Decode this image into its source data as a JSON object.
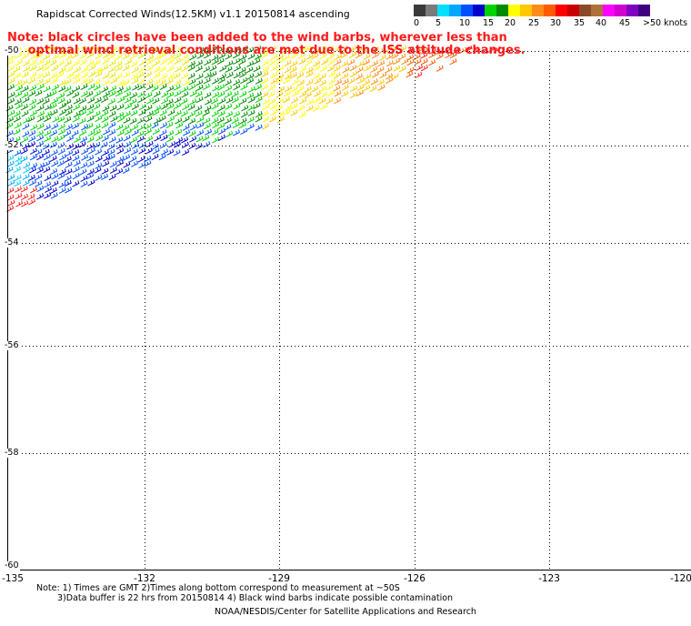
{
  "header": {
    "title": "Rapidscat Corrected Winds(12.5KM) v1.1 20150814 ascending"
  },
  "warning": {
    "line1": "Note: black circles have been added to the wind barbs, wherever less than",
    "line2": "     optimal wind retrieval conditions are met due to the ISS attitude changes."
  },
  "speed_scale": {
    "colors": [
      "#3a3a3a",
      "#7a7a7a",
      "#00e0ff",
      "#00a8ff",
      "#0050ff",
      "#0000cc",
      "#00d400",
      "#008a00",
      "#ffff00",
      "#ffc800",
      "#ff8c1a",
      "#ff5a00",
      "#ff0000",
      "#c80000",
      "#8b4a2a",
      "#b0703a",
      "#ff00ff",
      "#d000d0",
      "#8000c0",
      "#400080"
    ],
    "labels": [
      "0",
      "5",
      "10",
      "15",
      "20",
      "25",
      "30",
      "35",
      "40",
      "45",
      ">50 knots"
    ]
  },
  "map": {
    "lat_labels": [
      "-50",
      "-52",
      "-54",
      "-56",
      "-58",
      "-60"
    ],
    "lon_labels": [
      "-135",
      "-132",
      "-129",
      "-126",
      "-123",
      "-120"
    ]
  },
  "footer": {
    "note1": "Note: 1) Times are GMT 2)Times along bottom correspond to measurement at ~50S",
    "note2": "3)Data buffer is 22 hrs from 20150814 4) Black wind barbs indicate possible contamination",
    "credit": "NOAA/NESDIS/Center for Satellite Applications and Research"
  }
}
